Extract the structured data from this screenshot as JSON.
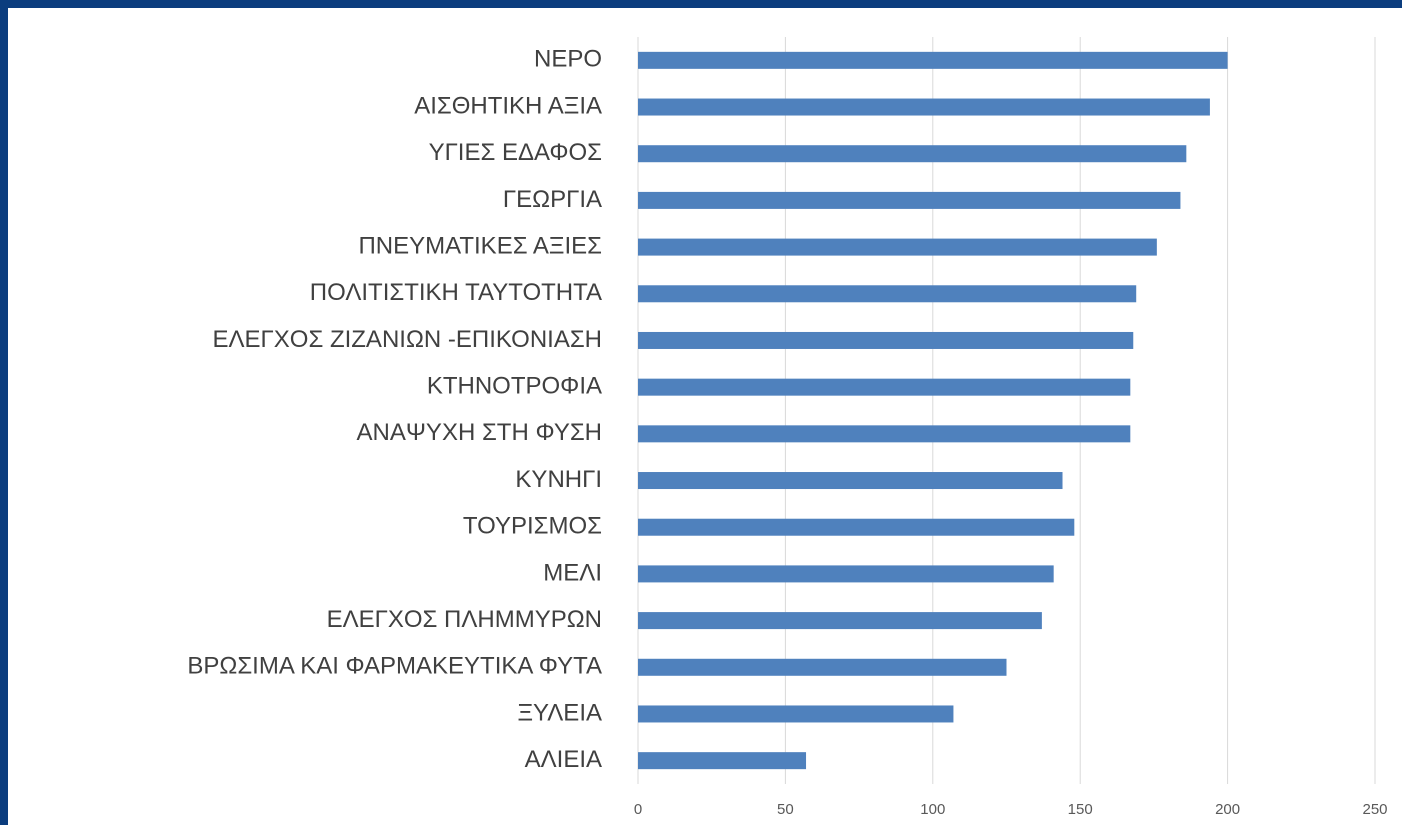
{
  "chart_data": {
    "type": "bar",
    "orientation": "horizontal",
    "categories": [
      "ΝΕΡΟ",
      "ΑΙΣΘΗΤΙΚΗ ΑΞΙΑ",
      "ΥΓΙΕΣ ΕΔΑΦΟΣ",
      "ΓΕΩΡΓΙΑ",
      "ΠΝΕΥΜΑΤΙΚΕΣ ΑΞΙΕΣ",
      "ΠΟΛΙΤΙΣΤΙΚΗ ΤΑΥΤΟΤΗΤΑ",
      "ΕΛΕΓΧΟΣ ΖΙΖΑΝΙΩΝ -ΕΠΙΚΟΝΙΑΣΗ",
      "ΚΤΗΝΟΤΡΟΦΙΑ",
      "ΑΝΑΨΥΧΗ ΣΤΗ ΦΥΣΗ",
      "ΚΥΝΗΓΙ",
      "ΤΟΥΡΙΣΜΟΣ",
      "ΜΕΛΙ",
      "ΕΛΕΓΧΟΣ ΠΛΗΜΜΥΡΩΝ",
      "ΒΡΩΣΙΜΑ ΚΑΙ ΦΑΡΜΑΚΕΥΤΙΚΑ ΦΥΤΑ",
      "ΞΥΛΕΙΑ",
      "ΑΛΙΕΙΑ"
    ],
    "values": [
      200,
      194,
      186,
      184,
      176,
      169,
      168,
      167,
      167,
      144,
      148,
      141,
      137,
      125,
      107,
      57
    ],
    "color": "#4f81bd",
    "xlim": [
      0,
      250
    ],
    "xticks": [
      0,
      50,
      100,
      150,
      200,
      250
    ],
    "grid": true
  }
}
